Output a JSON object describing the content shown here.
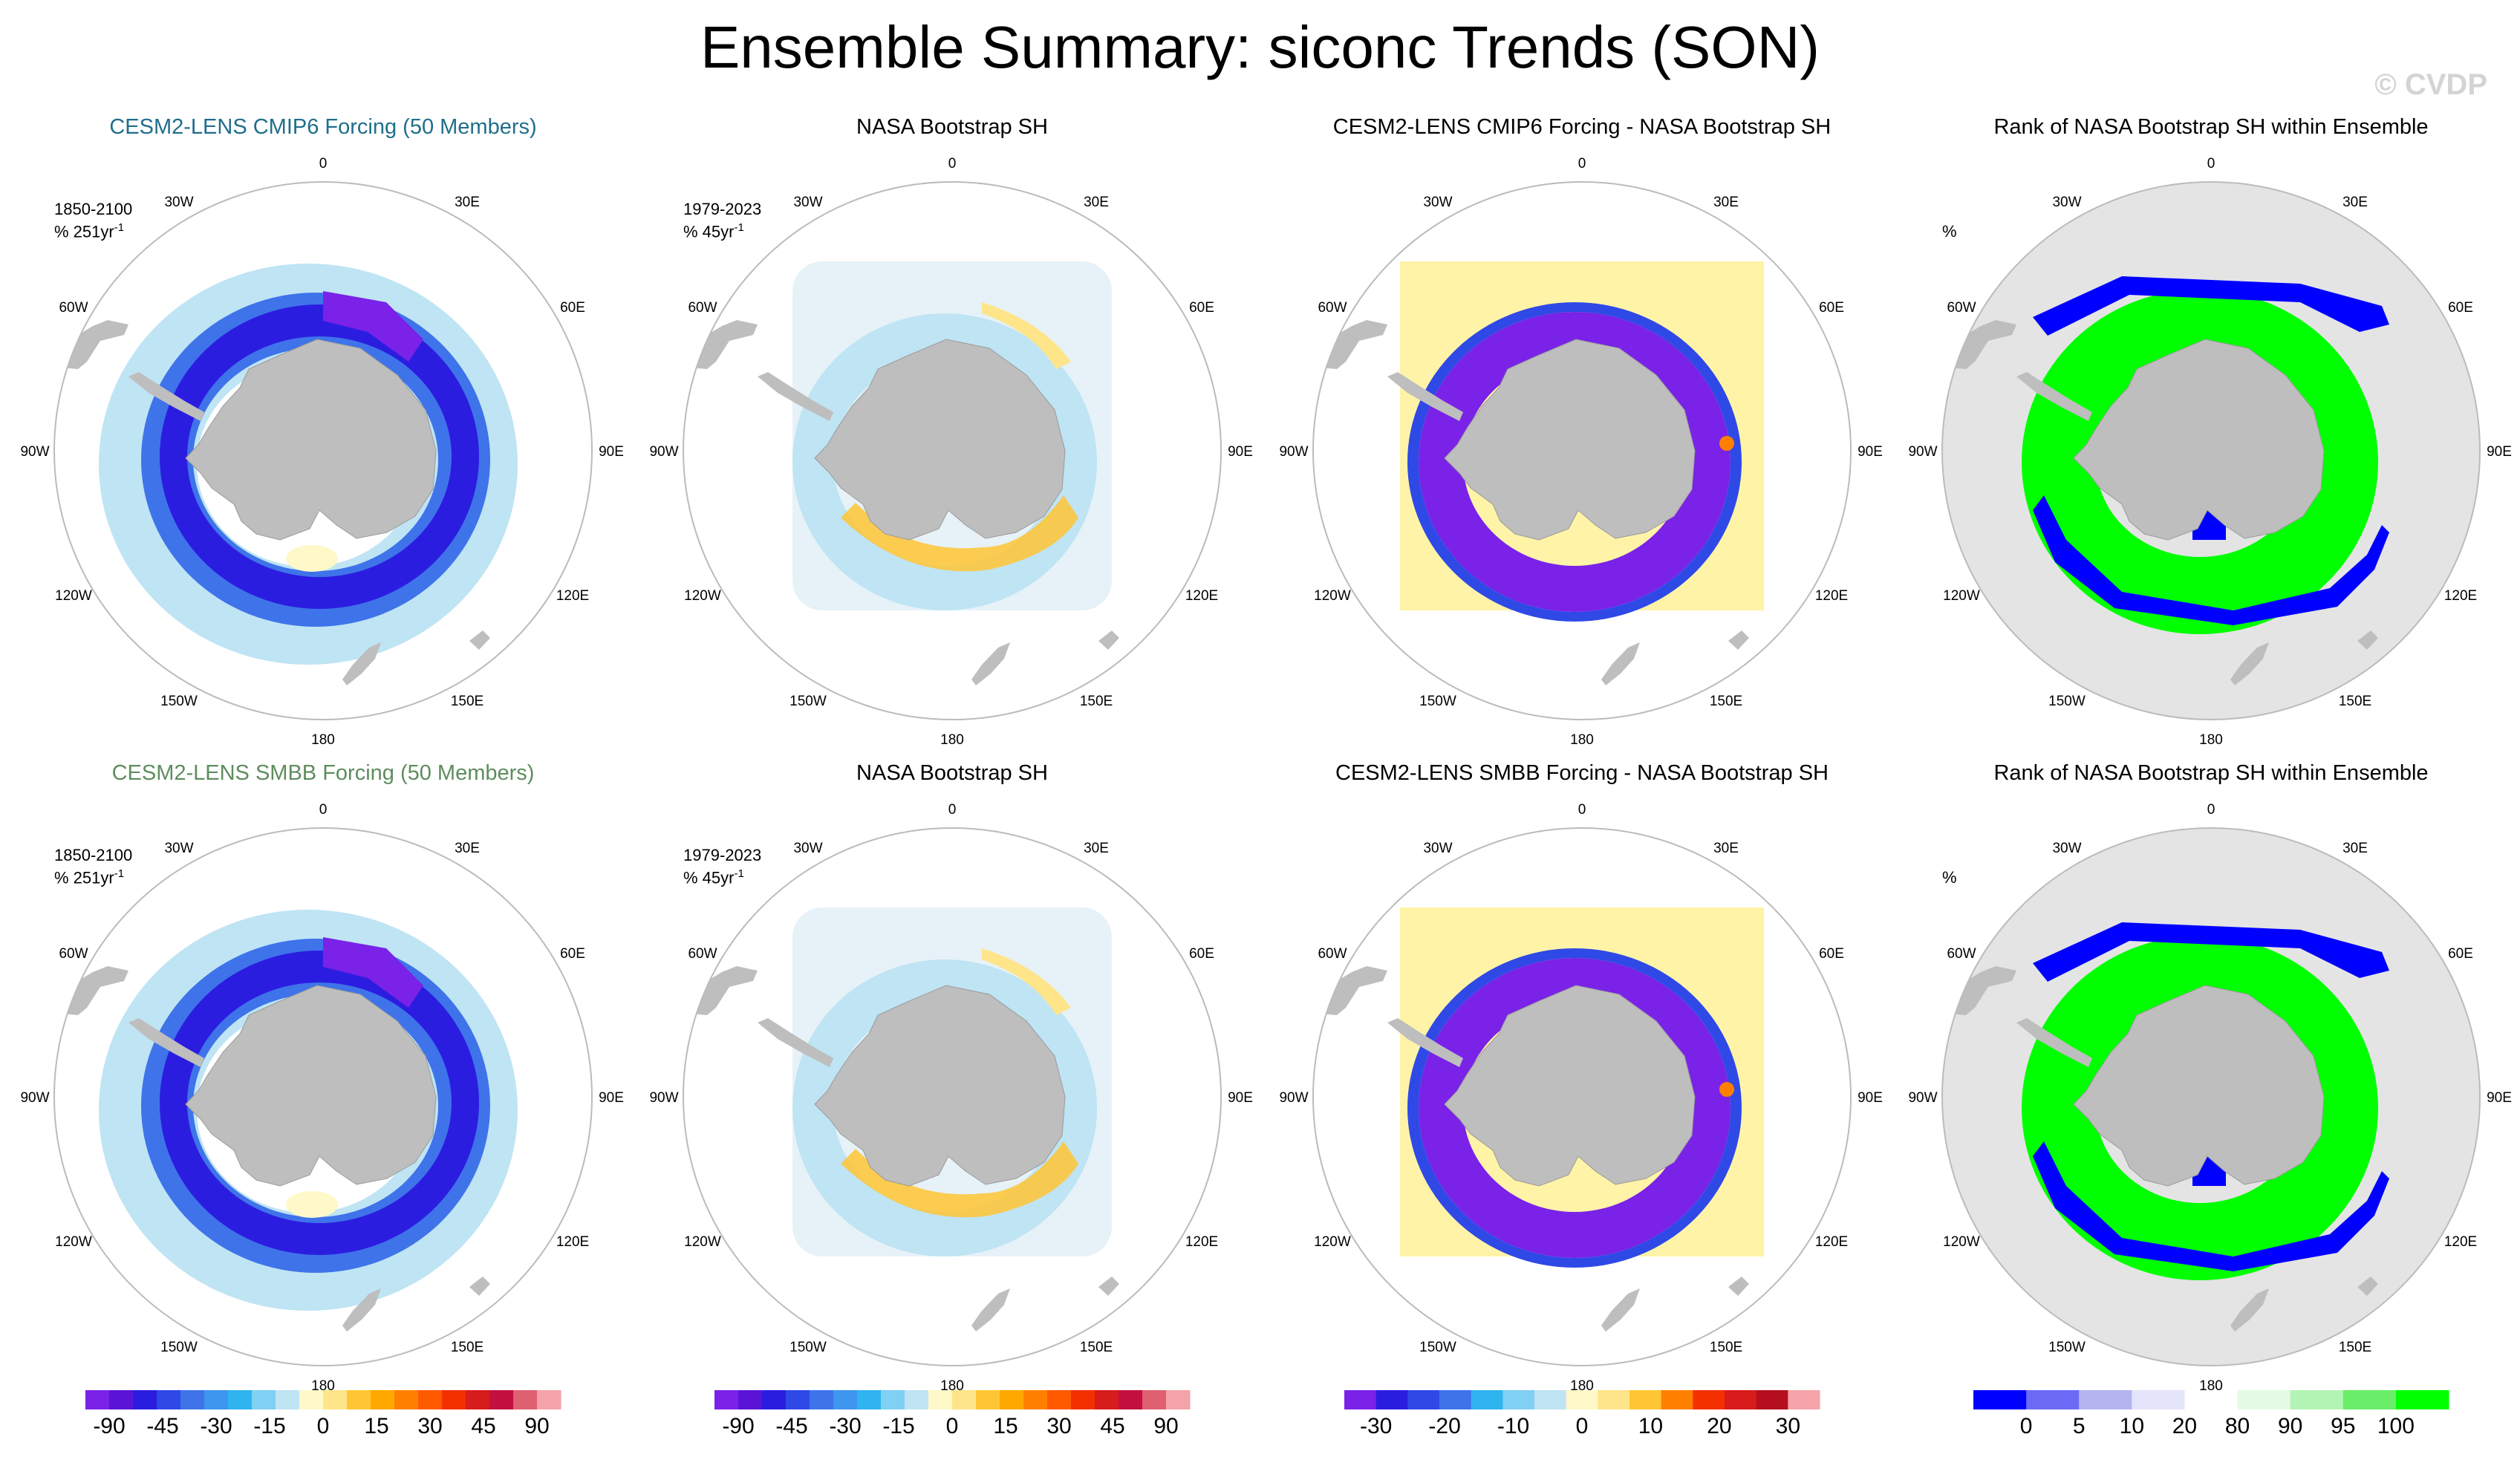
{
  "title": "Ensemble Summary: siconc Trends (SON)",
  "watermark": "© CVDP",
  "longitude_labels": [
    "0",
    "30E",
    "60E",
    "90E",
    "120E",
    "150E",
    "180",
    "150W",
    "120W",
    "90W",
    "60W",
    "30W"
  ],
  "rows": [
    {
      "panels": [
        {
          "title": "CESM2-LENS CMIP6 Forcing (50 Members)",
          "title_color": "#1f6e8c",
          "period": "1850-2100",
          "units": "% 251yr",
          "units_exp": "-1",
          "field": "ensemble"
        },
        {
          "title": "NASA Bootstrap SH",
          "title_color": "#000000",
          "period": "1979-2023",
          "units": "% 45yr",
          "units_exp": "-1",
          "field": "observed"
        },
        {
          "title": "CESM2-LENS CMIP6 Forcing - NASA Bootstrap SH",
          "title_color": "#000000",
          "field": "difference"
        },
        {
          "title": "Rank of NASA Bootstrap SH within Ensemble",
          "title_color": "#000000",
          "units": "%",
          "field": "rank"
        }
      ]
    },
    {
      "panels": [
        {
          "title": "CESM2-LENS SMBB Forcing (50 Members)",
          "title_color": "#5e8d5e",
          "period": "1850-2100",
          "units": "% 251yr",
          "units_exp": "-1",
          "field": "ensemble"
        },
        {
          "title": "NASA Bootstrap SH",
          "title_color": "#000000",
          "period": "1979-2023",
          "units": "% 45yr",
          "units_exp": "-1",
          "field": "observed"
        },
        {
          "title": "CESM2-LENS SMBB Forcing - NASA Bootstrap SH",
          "title_color": "#000000",
          "field": "difference"
        },
        {
          "title": "Rank of NASA Bootstrap SH within Ensemble",
          "title_color": "#000000",
          "units": "%",
          "field": "rank"
        }
      ]
    }
  ],
  "colorbars": [
    {
      "colors": [
        "#7a22e8",
        "#5a14d6",
        "#2b1de0",
        "#2f49e6",
        "#3f73ea",
        "#3e96ee",
        "#2fb4f0",
        "#7fd0f2",
        "#bfe4f4",
        "#fff8c8",
        "#ffe58a",
        "#ffc634",
        "#ffa800",
        "#ff8000",
        "#ff5a00",
        "#f43000",
        "#d81b1b",
        "#c21040",
        "#df6070",
        "#f4a3a8"
      ],
      "labels": [
        "-90",
        "-45",
        "-30",
        "-15",
        "0",
        "15",
        "30",
        "45",
        "90"
      ]
    },
    {
      "colors": [
        "#7a22e8",
        "#5a14d6",
        "#2b1de0",
        "#2f49e6",
        "#3f73ea",
        "#3e96ee",
        "#2fb4f0",
        "#7fd0f2",
        "#bfe4f4",
        "#fff8c8",
        "#ffe58a",
        "#ffc634",
        "#ffa800",
        "#ff8000",
        "#ff5a00",
        "#f43000",
        "#d81b1b",
        "#c21040",
        "#df6070",
        "#f4a3a8"
      ],
      "labels": [
        "-90",
        "-45",
        "-30",
        "-15",
        "0",
        "15",
        "30",
        "45",
        "90"
      ]
    },
    {
      "colors": [
        "#7a22e8",
        "#2b1de0",
        "#2f49e6",
        "#3f73ea",
        "#2fb4f0",
        "#7fd0f2",
        "#bfe4f4",
        "#fff8c8",
        "#ffe58a",
        "#ffc634",
        "#ff8000",
        "#f43000",
        "#d81b1b",
        "#b50f1f",
        "#f4a3a8"
      ],
      "labels": [
        "-30",
        "-20",
        "-10",
        "0",
        "10",
        "20",
        "30"
      ]
    },
    {
      "colors": [
        "#0000ff",
        "#6a6af4",
        "#b4b4f0",
        "#e4e4fa",
        "#ffffff",
        "#e4fae4",
        "#b4f4b4",
        "#6aee6a",
        "#00ff00"
      ],
      "labels": [
        "0",
        "5",
        "10",
        "20",
        "80",
        "90",
        "95",
        "100"
      ]
    }
  ],
  "colors": {
    "land": "#bebebe",
    "ocean": "#ffffff",
    "rank_background": "#e4e4e4",
    "map_border": "#bbbbbb",
    "rank_green": "#00ff00",
    "rank_blue": "#0000ff"
  }
}
